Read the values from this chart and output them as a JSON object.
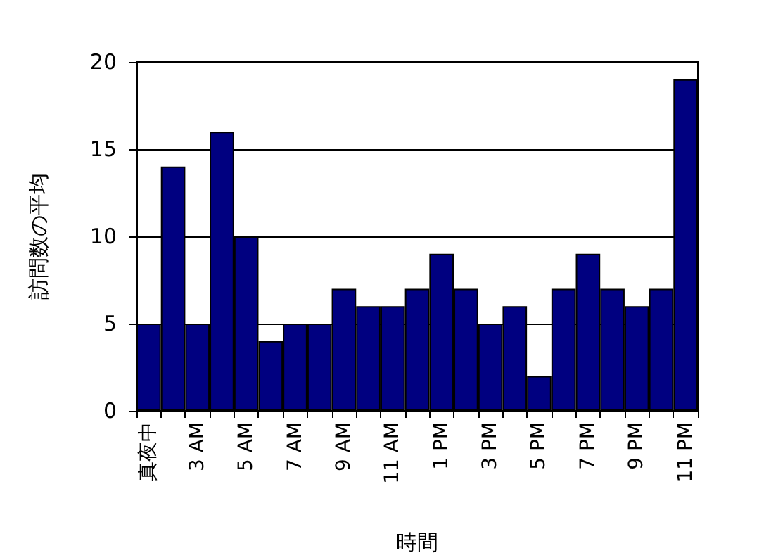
{
  "chart_data": {
    "type": "bar",
    "xlabel": "時間",
    "ylabel": "訪問数の平均",
    "categories": [
      "真夜中",
      null,
      "3 AM",
      null,
      "5 AM",
      null,
      "7 AM",
      null,
      "9 AM",
      null,
      "11 AM",
      null,
      "1 PM",
      null,
      "3 PM",
      null,
      "5 PM",
      null,
      "7 PM",
      null,
      "9 PM",
      null,
      "11 PM"
    ],
    "values": [
      5,
      14,
      5,
      16,
      10,
      4,
      5,
      5,
      7,
      6,
      6,
      7,
      9,
      7,
      5,
      6,
      2,
      7,
      9,
      7,
      6,
      7,
      19
    ],
    "color": "#000080",
    "ylim": [
      0,
      20
    ],
    "yticks": [
      0,
      5,
      10,
      15,
      20
    ],
    "grid": "y"
  }
}
